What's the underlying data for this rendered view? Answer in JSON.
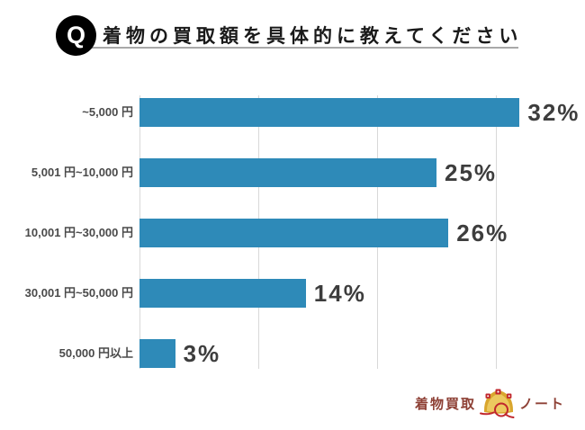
{
  "header": {
    "badge": "Q",
    "title": "着物の買取額を具体的に教えてください"
  },
  "chart_data": {
    "type": "bar",
    "orientation": "horizontal",
    "title": "着物の買取額を具体的に教えてください",
    "categories": [
      "~5,000 円",
      "5,001 円~10,000 円",
      "10,001 円~30,000 円",
      "30,001 円~50,000 円",
      "50,000 円以上"
    ],
    "values": [
      32,
      25,
      26,
      14,
      3
    ],
    "value_suffix": "%",
    "xlim": [
      0,
      36
    ],
    "grid_ticks_percent": [
      0,
      10,
      20,
      30
    ],
    "grid_on": true,
    "bar_color": "#2e8ab8",
    "gridline_color": "#d8d8d8",
    "value_label_color": "#3d3d3d",
    "category_label_color": "#4a4a4a"
  },
  "footer": {
    "logo_text_left": "着物買取",
    "logo_icon": "gift-envelope-icon",
    "logo_text_right": "ノート",
    "logo_color": "#8e4136"
  }
}
